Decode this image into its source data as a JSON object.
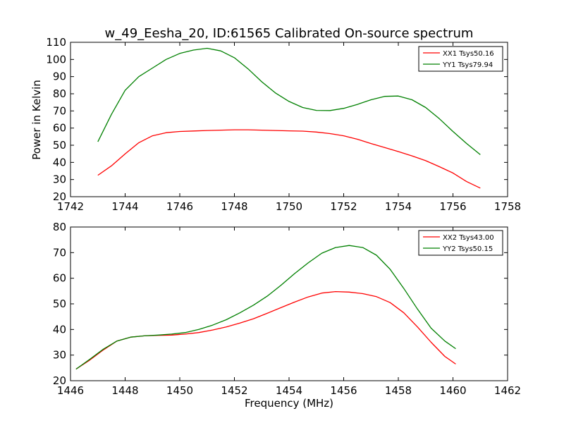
{
  "figure": {
    "title": "w_49_Eesha_20, ID:61565 Calibrated On-source spectrum",
    "ylabel": "Power in Kelvin",
    "xlabel": "Frequency (MHz)"
  },
  "colors": {
    "XX": "#ff0000",
    "YY": "#008000"
  },
  "chart_data": [
    {
      "type": "line",
      "xlim": [
        1742,
        1758
      ],
      "ylim": [
        20,
        110
      ],
      "xticks": [
        1742,
        1744,
        1746,
        1748,
        1750,
        1752,
        1754,
        1756,
        1758
      ],
      "yticks": [
        20,
        30,
        40,
        50,
        60,
        70,
        80,
        90,
        100,
        110
      ],
      "xtick_labels": [
        "1742",
        "1744",
        "1746",
        "1748",
        "1750",
        "1752",
        "1754",
        "1756",
        "1758"
      ],
      "ytick_labels": [
        "20",
        "30",
        "40",
        "50",
        "60",
        "70",
        "80",
        "90",
        "100",
        "110"
      ],
      "legend_position": "top-right",
      "series": [
        {
          "name": "XX1 Tsys50.16",
          "color": "#ff0000",
          "x": [
            1743.0,
            1743.5,
            1744.0,
            1744.5,
            1745.0,
            1745.5,
            1746.0,
            1746.5,
            1747.0,
            1747.5,
            1748.0,
            1748.5,
            1749.0,
            1749.5,
            1750.0,
            1750.5,
            1751.0,
            1751.5,
            1752.0,
            1752.5,
            1753.0,
            1753.5,
            1754.0,
            1754.5,
            1755.0,
            1755.5,
            1756.0,
            1756.5,
            1757.0
          ],
          "y": [
            32.5,
            38.0,
            45.0,
            51.5,
            55.5,
            57.3,
            58.0,
            58.3,
            58.6,
            58.8,
            59.0,
            59.0,
            58.8,
            58.6,
            58.4,
            58.2,
            57.7,
            56.8,
            55.5,
            53.5,
            51.0,
            48.7,
            46.3,
            43.8,
            41.0,
            37.5,
            33.8,
            28.8,
            25.0
          ]
        },
        {
          "name": "YY1 Tsys79.94",
          "color": "#008000",
          "x": [
            1743.0,
            1743.5,
            1744.0,
            1744.5,
            1745.0,
            1745.5,
            1746.0,
            1746.5,
            1747.0,
            1747.5,
            1748.0,
            1748.5,
            1749.0,
            1749.5,
            1750.0,
            1750.5,
            1751.0,
            1751.5,
            1752.0,
            1752.5,
            1753.0,
            1753.5,
            1754.0,
            1754.5,
            1755.0,
            1755.5,
            1756.0,
            1756.5,
            1757.0
          ],
          "y": [
            52.0,
            68.0,
            82.0,
            90.0,
            95.0,
            100.0,
            103.5,
            105.5,
            106.5,
            105.0,
            101.0,
            94.5,
            87.0,
            80.5,
            75.5,
            72.0,
            70.3,
            70.2,
            71.5,
            73.8,
            76.5,
            78.5,
            78.7,
            76.5,
            72.0,
            65.5,
            58.0,
            51.0,
            44.5
          ]
        }
      ]
    },
    {
      "type": "line",
      "xlim": [
        1446,
        1462
      ],
      "ylim": [
        20,
        80
      ],
      "xticks": [
        1446,
        1448,
        1450,
        1452,
        1454,
        1456,
        1458,
        1460,
        1462
      ],
      "yticks": [
        20,
        30,
        40,
        50,
        60,
        70,
        80
      ],
      "xtick_labels": [
        "1446",
        "1448",
        "1450",
        "1452",
        "1454",
        "1456",
        "1458",
        "1460",
        "1462"
      ],
      "ytick_labels": [
        "20",
        "30",
        "40",
        "50",
        "60",
        "70",
        "80"
      ],
      "xlabel": "Frequency (MHz)",
      "legend_position": "top-right",
      "series": [
        {
          "name": "XX2 Tsys43.00",
          "color": "#ff0000",
          "x": [
            1446.2,
            1446.7,
            1447.2,
            1447.7,
            1448.2,
            1448.7,
            1449.2,
            1449.7,
            1450.2,
            1450.7,
            1451.2,
            1451.7,
            1452.2,
            1452.7,
            1453.2,
            1453.7,
            1454.2,
            1454.7,
            1455.2,
            1455.7,
            1456.2,
            1456.7,
            1457.2,
            1457.7,
            1458.2,
            1458.7,
            1459.2,
            1459.7,
            1460.1
          ],
          "y": [
            24.5,
            28.0,
            32.0,
            35.5,
            37.0,
            37.5,
            37.7,
            37.8,
            38.2,
            38.8,
            39.8,
            41.0,
            42.5,
            44.2,
            46.3,
            48.5,
            50.7,
            52.7,
            54.2,
            54.8,
            54.6,
            54.0,
            52.8,
            50.5,
            46.5,
            41.0,
            35.0,
            29.5,
            26.5
          ]
        },
        {
          "name": "YY2 Tsys50.15",
          "color": "#008000",
          "x": [
            1446.2,
            1446.7,
            1447.2,
            1447.7,
            1448.2,
            1448.7,
            1449.2,
            1449.7,
            1450.2,
            1450.7,
            1451.2,
            1451.7,
            1452.2,
            1452.7,
            1453.2,
            1453.7,
            1454.2,
            1454.7,
            1455.2,
            1455.7,
            1456.2,
            1456.7,
            1457.2,
            1457.7,
            1458.2,
            1458.7,
            1459.2,
            1459.7,
            1460.1
          ],
          "y": [
            24.5,
            28.3,
            32.3,
            35.5,
            37.0,
            37.5,
            37.8,
            38.2,
            38.8,
            40.0,
            41.7,
            43.8,
            46.5,
            49.5,
            53.0,
            57.2,
            61.8,
            66.0,
            69.8,
            72.0,
            72.8,
            72.0,
            69.0,
            63.5,
            56.0,
            48.0,
            40.5,
            35.5,
            32.5
          ]
        }
      ]
    }
  ]
}
